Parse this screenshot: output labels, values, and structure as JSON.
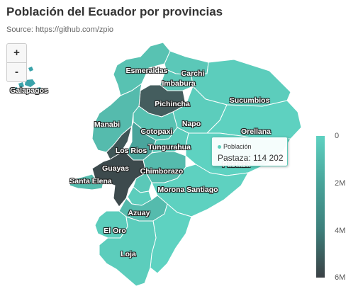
{
  "title": "Población del Ecuador por provincias",
  "subtitle": "Source: https://github.com/zpio",
  "zoom": {
    "in_label": "+",
    "out_label": "-"
  },
  "colors": {
    "low": "#5ed1c1",
    "high": "#3b4145",
    "border": "#ffffff",
    "island": "#3aa3aa"
  },
  "provinces": [
    {
      "key": "esmeraldas",
      "name": "Esmeraldas"
    },
    {
      "key": "carchi",
      "name": "Carchi"
    },
    {
      "key": "imbabura",
      "name": "Imbabura"
    },
    {
      "key": "pichincha",
      "name": "Pichincha"
    },
    {
      "key": "sucumbios",
      "name": "Sucumbios"
    },
    {
      "key": "manabi",
      "name": "Manabi"
    },
    {
      "key": "napo",
      "name": "Napo"
    },
    {
      "key": "cotopaxi",
      "name": "Cotopaxi"
    },
    {
      "key": "orellana",
      "name": "Orellana"
    },
    {
      "key": "losrios",
      "name": "Los Rios"
    },
    {
      "key": "tungurahua",
      "name": "Tungurahua"
    },
    {
      "key": "pastaza",
      "name": "Pastaza"
    },
    {
      "key": "guayas",
      "name": "Guayas"
    },
    {
      "key": "chimborazo",
      "name": "Chimborazo"
    },
    {
      "key": "santaelena",
      "name": "Santa Elena"
    },
    {
      "key": "morona",
      "name": "Morona Santiago"
    },
    {
      "key": "azuay",
      "name": "Azuay"
    },
    {
      "key": "eloro",
      "name": "El Oro"
    },
    {
      "key": "loja",
      "name": "Loja"
    },
    {
      "key": "galapagos",
      "name": "Galapagos"
    }
  ],
  "tooltip": {
    "series": "Población",
    "text": "Pastaza: 114 202"
  },
  "legend": {
    "ticks": [
      "0",
      "2M",
      "4M",
      "6M"
    ]
  }
}
